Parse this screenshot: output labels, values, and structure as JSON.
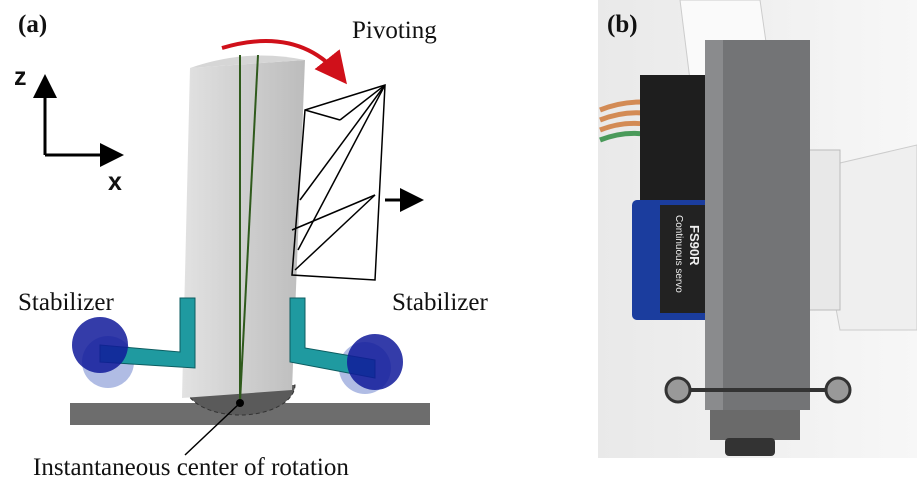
{
  "panels": [
    {
      "label": "(a)",
      "annotations": {
        "motion": "Pivoting",
        "z_axis": "z",
        "x_axis": "x",
        "stabilizer_left": "Stabilizer",
        "stabilizer_right": "Stabilizer",
        "center": "Instantaneous center of rotation"
      }
    },
    {
      "label": "(b)",
      "servo_label": [
        "Continuous servo",
        "FS90R"
      ]
    }
  ]
}
